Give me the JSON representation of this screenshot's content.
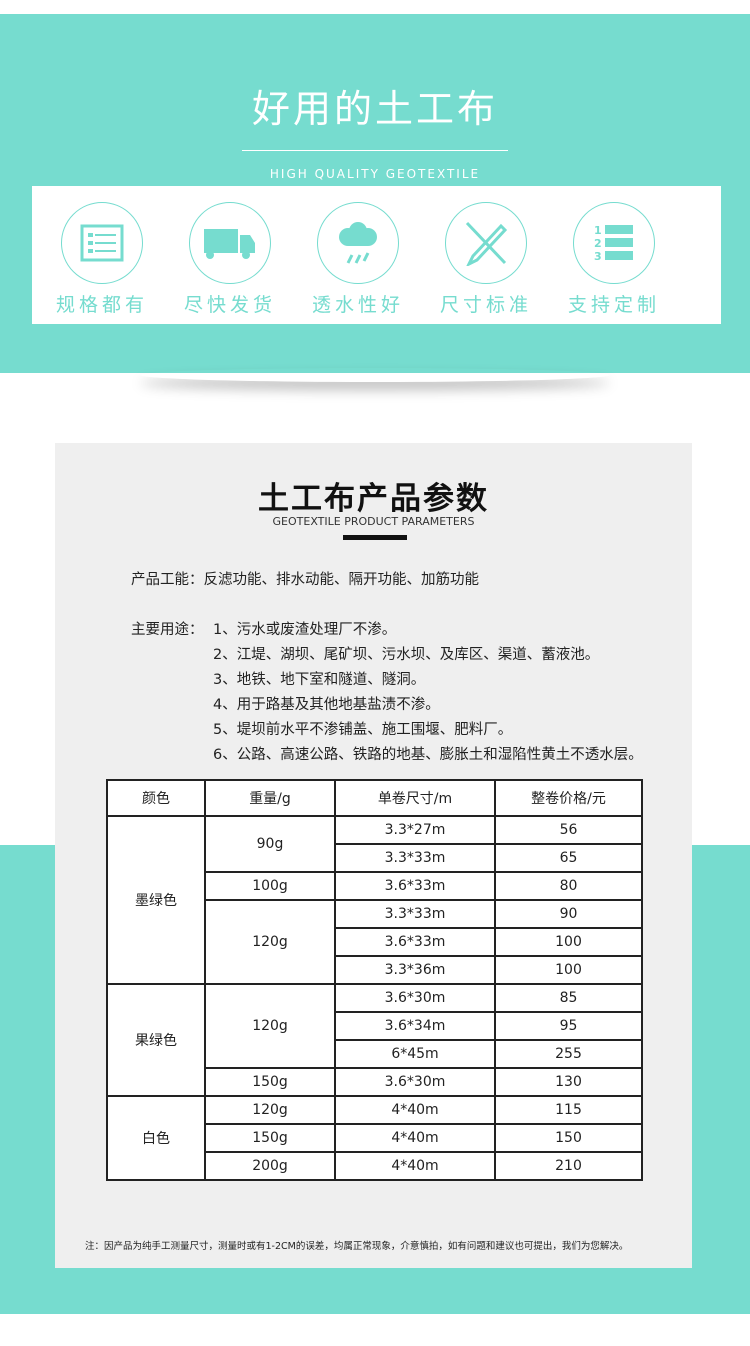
{
  "header": {
    "title": "好用的土工布",
    "subtitle": "HIGH QUALITY GEOTEXTILE"
  },
  "features": [
    {
      "label": "规格都有",
      "icon": "list-icon"
    },
    {
      "label": "尽快发货",
      "icon": "truck-icon"
    },
    {
      "label": "透水性好",
      "icon": "rain-cloud-icon"
    },
    {
      "label": "尺寸标准",
      "icon": "pencil-ruler-icon"
    },
    {
      "label": "支持定制",
      "icon": "numbered-list-icon"
    }
  ],
  "params": {
    "title": "土工布产品参数",
    "subtitle": "GEOTEXTILE PRODUCT PARAMETERS",
    "function_line": "产品工能：反滤功能、排水动能、隔开功能、加筋功能",
    "uses_label": "主要用途：",
    "uses": [
      "1、污水或废渣处理厂不渗。",
      "2、江堤、湖坝、尾矿坝、污水坝、及库区、渠道、蓄液池。",
      "3、地铁、地下室和隧道、隧洞。",
      "4、用于路基及其他地基盐渍不渗。",
      "5、堤坝前水平不渗铺盖、施工围堰、肥料厂。",
      "6、公路、高速公路、铁路的地基、膨胀土和湿陷性黄土不透水层。"
    ],
    "note": "注：因产品为纯手工测量尺寸，测量时或有1-2CM的误差，均属正常现象，介意慎拍，如有问题和建议也可提出，我们为您解决。"
  },
  "table": {
    "headers": [
      "颜色",
      "重量/g",
      "单卷尺寸/m",
      "整卷价格/元"
    ],
    "colors": [
      "墨绿色",
      "果绿色",
      "白色"
    ],
    "weights": [
      "90g",
      "100g",
      "120g",
      "120g",
      "150g",
      "120g",
      "150g",
      "200g"
    ],
    "sizes": [
      "3.3*27m",
      "3.3*33m",
      "3.6*33m",
      "3.3*33m",
      "3.6*33m",
      "3.3*36m",
      "3.6*30m",
      "3.6*34m",
      "6*45m",
      "3.6*30m",
      "4*40m",
      "4*40m",
      "4*40m"
    ],
    "prices": [
      "56",
      "65",
      "80",
      "90",
      "100",
      "100",
      "85",
      "95",
      "255",
      "130",
      "115",
      "150",
      "210"
    ]
  },
  "colors": {
    "accent": "#76dccf"
  }
}
